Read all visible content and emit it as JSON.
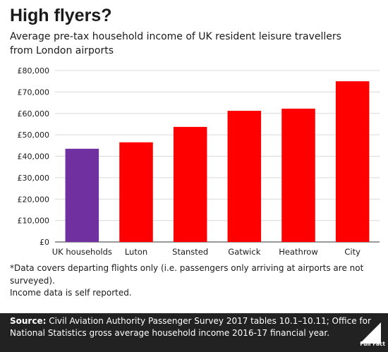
{
  "title": "High flyers?",
  "subtitle_lines": [
    "Average pre-tax household income of UK resident leisure travellers",
    "from London airports"
  ],
  "colors": {
    "highlight": "#7030a0",
    "bar": "#ff0000",
    "grid": "#d9d9d9",
    "footer_bg": "#222222"
  },
  "chart_data": {
    "type": "bar",
    "categories": [
      "UK households",
      "Luton",
      "Stansted",
      "Gatwick",
      "Heathrow",
      "City"
    ],
    "values": [
      43500,
      46500,
      53700,
      61200,
      62200,
      75000
    ],
    "bar_colors": [
      "#7030a0",
      "#ff0000",
      "#ff0000",
      "#ff0000",
      "#ff0000",
      "#ff0000"
    ],
    "ylim": [
      0,
      80000
    ],
    "yticks": [
      0,
      10000,
      20000,
      30000,
      40000,
      50000,
      60000,
      70000,
      80000
    ],
    "ytick_labels": [
      "£0",
      "£10,000",
      "£20,000",
      "£30,000",
      "£40,000",
      "£50,000",
      "£60,000",
      "£70,000",
      "£80,000"
    ],
    "grid": true,
    "title": "",
    "xlabel": "",
    "ylabel": ""
  },
  "notes": [
    "*Data covers departing flights only (i.e. passengers only arriving at airports are not",
    "surveyed).",
    "Income data is self reported."
  ],
  "footer": {
    "source_label": "Source:",
    "line1": " Civil Aviation Authority Passenger Survey 2017 tables 10.1–10.11; Office for",
    "line2": "National Statistics gross average household income 2016-17 financial year.",
    "logo_text": "Full Fact",
    "logo_icon": "full-fact-logo-icon"
  }
}
